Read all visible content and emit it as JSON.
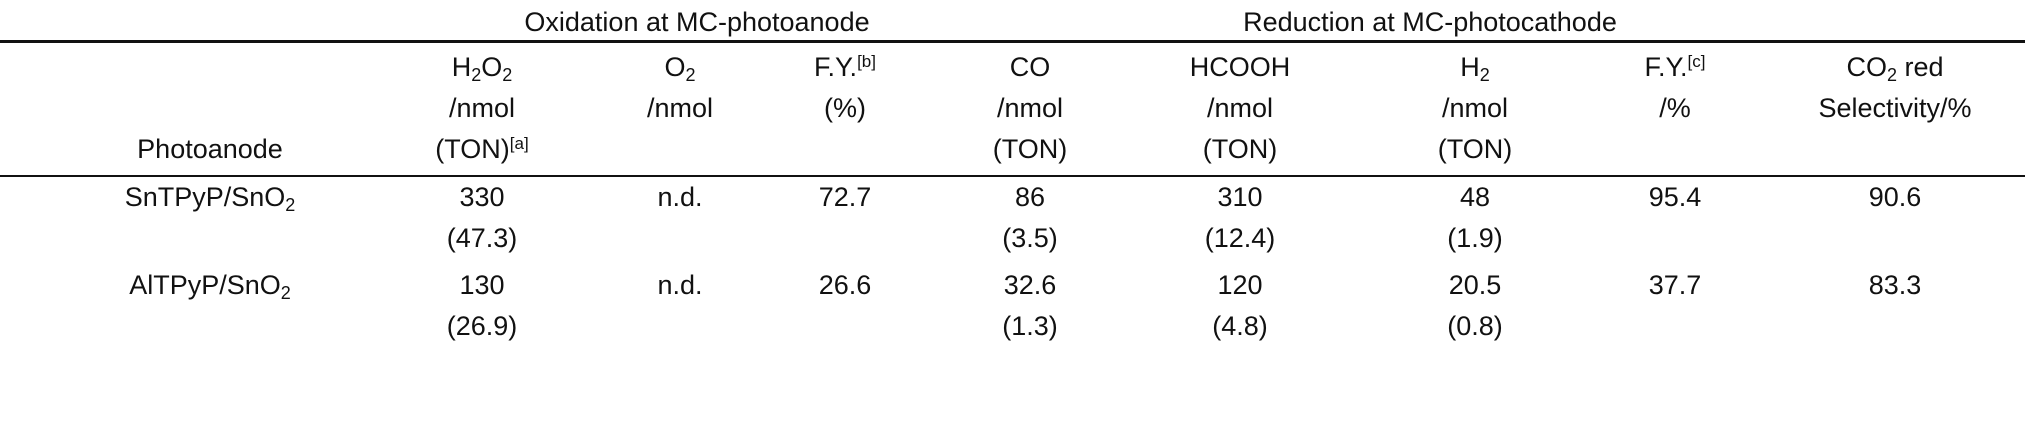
{
  "groups": {
    "oxidation": "Oxidation at MC-photoanode",
    "reduction": "Reduction at MC-photocathode"
  },
  "header": {
    "photoanode": "Photoanode",
    "h2o2": {
      "sym1": "H",
      "sub1": "2",
      "sym2": "O",
      "sub2": "2",
      "unit": "/nmol",
      "ton": "(TON)",
      "note": "[a]"
    },
    "o2": {
      "sym": "O",
      "sub": "2",
      "unit": "/nmol"
    },
    "fy_ox": {
      "label": "F.Y.",
      "note": "[b]",
      "unit": "(%)"
    },
    "co": {
      "label": "CO",
      "unit": "/nmol",
      "ton": "(TON)"
    },
    "hcooh": {
      "label": "HCOOH",
      "unit": "/nmol",
      "ton": "(TON)"
    },
    "h2": {
      "sym": "H",
      "sub": "2",
      "unit": "/nmol",
      "ton": "(TON)"
    },
    "fy_red": {
      "label": "F.Y.",
      "note": "[c]",
      "unit": "/%"
    },
    "co2sel": {
      "sym": "CO",
      "sub": "2",
      "rest": " red",
      "unit": "Selectivity/%"
    }
  },
  "rows": [
    {
      "name": "SnTPyP/SnO",
      "name_sub": "2",
      "h2o2": "330",
      "h2o2_ton": "(47.3)",
      "o2": "n.d.",
      "fy_ox": "72.7",
      "co": "86",
      "co_ton": "(3.5)",
      "hcooh": "310",
      "hcooh_ton": "(12.4)",
      "h2": "48",
      "h2_ton": "(1.9)",
      "fy_red": "95.4",
      "sel": "90.6"
    },
    {
      "name": "AlTPyP/SnO",
      "name_sub": "2",
      "h2o2": "130",
      "h2o2_ton": "(26.9)",
      "o2": "n.d.",
      "fy_ox": "26.6",
      "co": "32.6",
      "co_ton": "(1.3)",
      "hcooh": "120",
      "hcooh_ton": "(4.8)",
      "h2": "20.5",
      "h2_ton": "(0.8)",
      "fy_red": "37.7",
      "sel": "83.3"
    }
  ]
}
